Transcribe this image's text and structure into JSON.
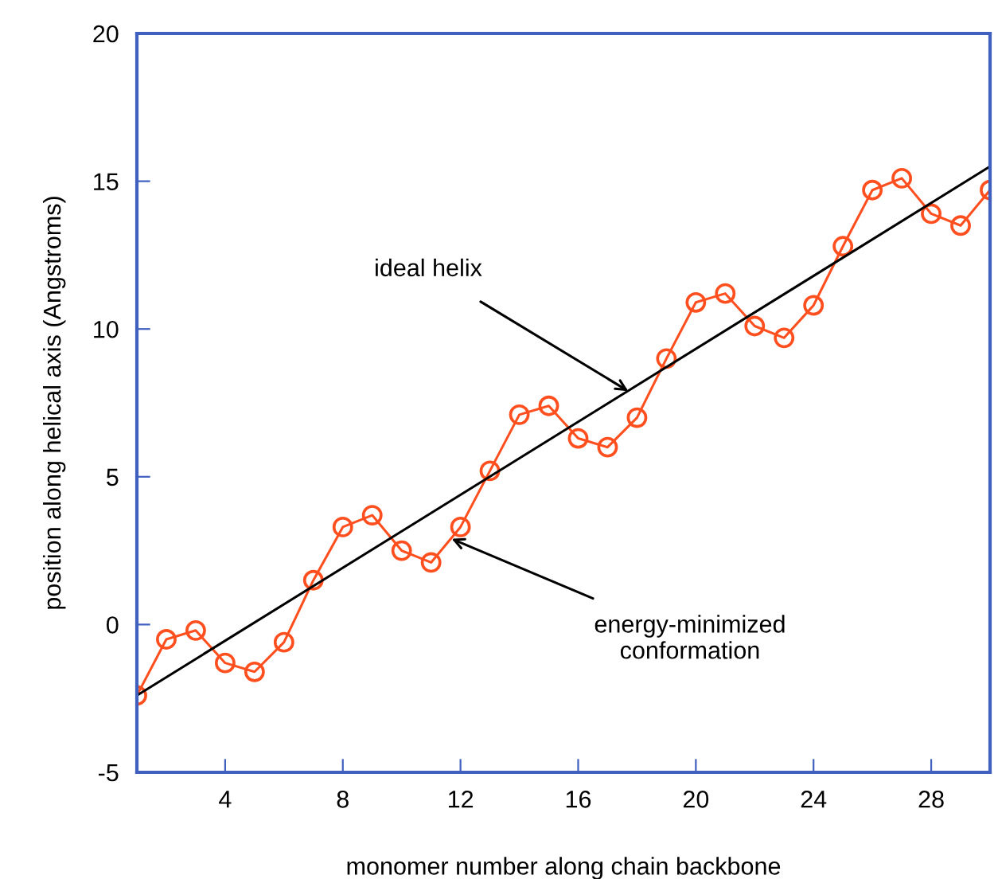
{
  "chart_data": {
    "type": "line",
    "xlabel": "monomer number along chain backbone",
    "ylabel": "position along helical axis (Angstroms)",
    "xlim": [
      1,
      30
    ],
    "xticks": [
      4,
      8,
      12,
      16,
      20,
      24,
      28
    ],
    "ylim": [
      -5,
      20
    ],
    "yticks": [
      -5,
      0,
      5,
      10,
      15,
      20
    ],
    "grid": false,
    "series": [
      {
        "color": "#ff4f1f",
        "marker": "circle",
        "x": [
          1,
          2,
          3,
          4,
          5,
          6,
          7,
          8,
          9,
          10,
          11,
          12,
          13,
          14,
          15,
          16,
          17,
          18,
          19,
          20,
          21,
          22,
          23,
          24,
          25,
          26,
          27,
          28,
          29,
          30
        ],
        "values": [
          -2.4,
          -0.5,
          -0.2,
          -1.3,
          -1.6,
          -0.6,
          1.5,
          3.3,
          3.7,
          2.5,
          2.1,
          3.3,
          5.2,
          7.1,
          7.4,
          6.3,
          6.0,
          7.0,
          9.0,
          10.9,
          11.2,
          10.1,
          9.7,
          10.8,
          12.8,
          14.7,
          15.1,
          13.9,
          13.5,
          14.7
        ]
      },
      {
        "color": "#000000",
        "marker": "none",
        "x": [
          1,
          30
        ],
        "values": [
          -2.4,
          15.5
        ]
      }
    ],
    "annotations": [
      {
        "text": "ideal helix",
        "x": 17.7,
        "y": 7.9
      },
      {
        "text": "energy-minimized\nconformation",
        "x": 11.7,
        "y": 2.9
      }
    ]
  }
}
